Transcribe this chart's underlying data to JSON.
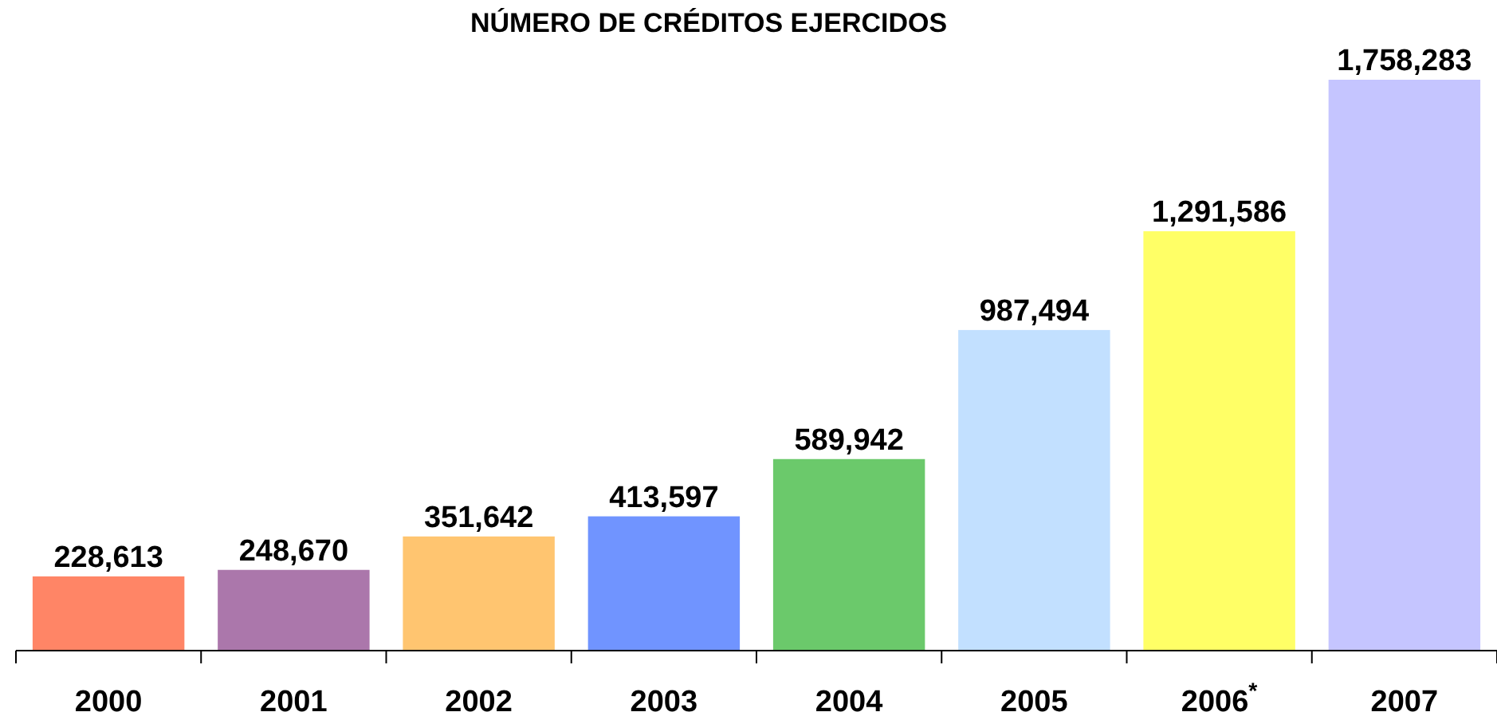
{
  "chart_data": {
    "type": "bar",
    "title": "NÚMERO DE CRÉDITOS EJERCIDOS",
    "categories": [
      "2000",
      "2001",
      "2002",
      "2003",
      "2004",
      "2005",
      "2006$^{*}$",
      "2007"
    ],
    "values": [
      228613,
      248670,
      351642,
      413597,
      589942,
      987494,
      1291586,
      1758283
    ],
    "colors": [
      "#ff8566",
      "#ab77ab",
      "#ffc570",
      "#7094ff",
      "#6bc96b",
      "#c2e0ff",
      "#ffff66",
      "#c5c5ff"
    ],
    "value_labels": [
      "228,613",
      "248,670",
      "351,642",
      "413,597",
      "589,942",
      "987,494",
      "1,291,586",
      "1,758,283"
    ]
  }
}
